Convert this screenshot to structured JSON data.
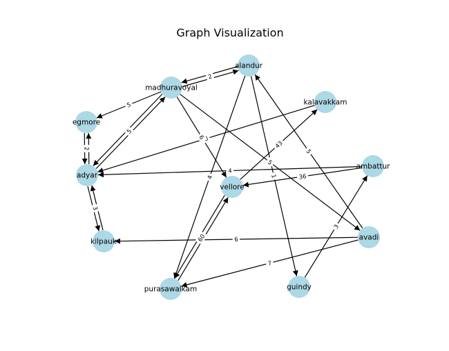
{
  "title": "Graph Visualization",
  "node_color": "#add8e6",
  "edge_color": "#000000",
  "nodes": [
    {
      "id": "alandur",
      "label": "alandur"
    },
    {
      "id": "madhuravoyal",
      "label": "madhuravoyal"
    },
    {
      "id": "kalavakkam",
      "label": "kalavakkam"
    },
    {
      "id": "egmore",
      "label": "egmore"
    },
    {
      "id": "adyar",
      "label": "adyar"
    },
    {
      "id": "ambattur",
      "label": "ambattur"
    },
    {
      "id": "vellore",
      "label": "vellore"
    },
    {
      "id": "kilpauk",
      "label": "kilpauk"
    },
    {
      "id": "avadi",
      "label": "avadi"
    },
    {
      "id": "purasawalkam",
      "label": "purasawalkam"
    },
    {
      "id": "guindy",
      "label": "guindy"
    }
  ],
  "edges": [
    {
      "source": "madhuravoyal",
      "target": "alandur",
      "weight": "2"
    },
    {
      "source": "alandur",
      "target": "madhuravoyal",
      "weight": ""
    },
    {
      "source": "madhuravoyal",
      "target": "egmore",
      "weight": "5"
    },
    {
      "source": "adyar",
      "target": "madhuravoyal",
      "weight": "5"
    },
    {
      "source": "madhuravoyal",
      "target": "adyar",
      "weight": ""
    },
    {
      "source": "egmore",
      "target": "adyar",
      "weight": "2"
    },
    {
      "source": "adyar",
      "target": "egmore",
      "weight": ""
    },
    {
      "source": "adyar",
      "target": "kilpauk",
      "weight": "3"
    },
    {
      "source": "kilpauk",
      "target": "adyar",
      "weight": ""
    },
    {
      "source": "kalavakkam",
      "target": "adyar",
      "weight": "3"
    },
    {
      "source": "ambattur",
      "target": "adyar",
      "weight": "4"
    },
    {
      "source": "madhuravoyal",
      "target": "vellore",
      "weight": "6"
    },
    {
      "source": "madhuravoyal",
      "target": "avadi",
      "weight": "5"
    },
    {
      "source": "alandur",
      "target": "purasawalkam",
      "weight": "4"
    },
    {
      "source": "alandur",
      "target": "guindy",
      "weight": "1"
    },
    {
      "source": "avadi",
      "target": "alandur",
      "weight": "5"
    },
    {
      "source": "vellore",
      "target": "kalavakkam",
      "weight": "43"
    },
    {
      "source": "ambattur",
      "target": "vellore",
      "weight": "36"
    },
    {
      "source": "avadi",
      "target": "kilpauk",
      "weight": "6"
    },
    {
      "source": "purasawalkam",
      "target": "vellore",
      "weight": "60"
    },
    {
      "source": "vellore",
      "target": "purasawalkam",
      "weight": ""
    },
    {
      "source": "avadi",
      "target": "purasawalkam",
      "weight": "7"
    },
    {
      "source": "guindy",
      "target": "ambattur",
      "weight": "3"
    }
  ]
}
